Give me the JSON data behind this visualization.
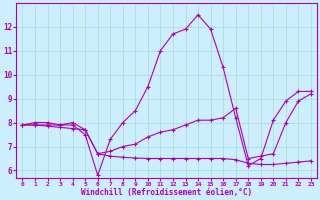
{
  "xlabel": "Windchill (Refroidissement éolien,°C)",
  "background_color": "#cceeff",
  "grid_color": "#aadddd",
  "line_color": "#aa00aa",
  "xlim": [
    -0.5,
    23.5
  ],
  "ylim": [
    5.7,
    13.0
  ],
  "xticks": [
    0,
    1,
    2,
    3,
    4,
    5,
    6,
    7,
    8,
    9,
    10,
    11,
    12,
    13,
    14,
    15,
    16,
    17,
    18,
    19,
    20,
    21,
    22,
    23
  ],
  "yticks": [
    6,
    7,
    8,
    9,
    10,
    11,
    12
  ],
  "line1_x": [
    0,
    1,
    2,
    3,
    4,
    5,
    6,
    7,
    8,
    9,
    10,
    11,
    12,
    13,
    14,
    15,
    16,
    17,
    18,
    19,
    20,
    21,
    22,
    23
  ],
  "line1_y": [
    7.9,
    8.0,
    8.0,
    7.9,
    7.9,
    7.5,
    5.8,
    7.3,
    8.0,
    8.5,
    9.5,
    11.0,
    11.7,
    11.9,
    12.5,
    11.9,
    10.3,
    8.2,
    6.2,
    6.5,
    8.1,
    8.9,
    9.3,
    9.3
  ],
  "line2_x": [
    0,
    1,
    2,
    3,
    4,
    5,
    6,
    7,
    8,
    9,
    10,
    11,
    12,
    13,
    14,
    15,
    16,
    17,
    18,
    19,
    20,
    21,
    22,
    23
  ],
  "line2_y": [
    7.9,
    7.9,
    7.9,
    7.9,
    8.0,
    7.7,
    6.7,
    6.8,
    7.0,
    7.1,
    7.4,
    7.6,
    7.7,
    7.9,
    8.1,
    8.1,
    8.2,
    8.6,
    6.5,
    6.6,
    6.7,
    8.0,
    8.9,
    9.2
  ],
  "line3_x": [
    0,
    1,
    2,
    3,
    4,
    5,
    6,
    7,
    8,
    9,
    10,
    11,
    12,
    13,
    14,
    15,
    16,
    17,
    18,
    19,
    20,
    21,
    22,
    23
  ],
  "line3_y": [
    7.9,
    7.9,
    7.85,
    7.8,
    7.75,
    7.7,
    6.7,
    6.6,
    6.55,
    6.52,
    6.5,
    6.5,
    6.5,
    6.5,
    6.5,
    6.5,
    6.5,
    6.45,
    6.3,
    6.25,
    6.25,
    6.3,
    6.35,
    6.4
  ]
}
